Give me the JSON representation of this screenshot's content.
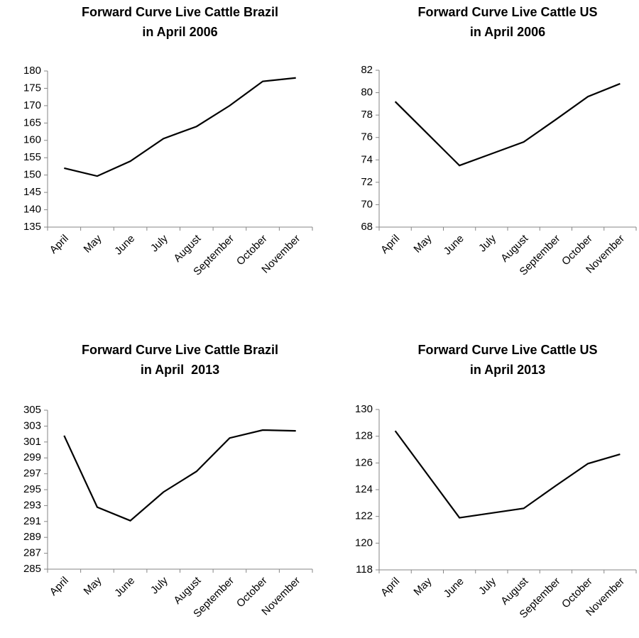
{
  "chart_data": [
    {
      "type": "line",
      "title": [
        "Forward Curve Live Cattle Brazil",
        "in April 2006"
      ],
      "categories": [
        "April",
        "May",
        "June",
        "July",
        "August",
        "September",
        "October",
        "November"
      ],
      "values": [
        152,
        149.7,
        154,
        160.5,
        164,
        170,
        177,
        178
      ],
      "color": "#000000",
      "ylim": [
        135,
        180
      ],
      "yticks": [
        135,
        140,
        145,
        150,
        155,
        160,
        165,
        170,
        175,
        180
      ]
    },
    {
      "type": "line",
      "title": [
        "Forward Curve Live Cattle US",
        "in April 2006"
      ],
      "categories": [
        "April",
        "May",
        "June",
        "July",
        "August",
        "September",
        "October",
        "November"
      ],
      "values": [
        79.2,
        76.35,
        73.5,
        74.55,
        75.6,
        77.6,
        79.65,
        80.8
      ],
      "color": "#000000",
      "ylim": [
        68,
        82
      ],
      "yticks": [
        68,
        70,
        72,
        74,
        76,
        78,
        80,
        82
      ]
    },
    {
      "type": "line",
      "title": [
        "Forward Curve Live Cattle Brazil",
        "in April  2013"
      ],
      "categories": [
        "April",
        "May",
        "June",
        "July",
        "August",
        "September",
        "October",
        "November"
      ],
      "values": [
        301.8,
        292.8,
        291.1,
        294.7,
        297.3,
        301.5,
        302.5,
        302.4
      ],
      "color": "#000000",
      "ylim": [
        285,
        305
      ],
      "yticks": [
        285,
        287,
        289,
        291,
        293,
        295,
        297,
        299,
        301,
        303,
        305
      ]
    },
    {
      "type": "line",
      "title": [
        "Forward Curve Live Cattle US",
        "in April 2013"
      ],
      "categories": [
        "April",
        "May",
        "June",
        "July",
        "August",
        "September",
        "October",
        "November"
      ],
      "values": [
        128.4,
        125.15,
        121.9,
        122.25,
        122.6,
        124.3,
        125.95,
        126.65
      ],
      "color": "#000000",
      "ylim": [
        118,
        130
      ],
      "yticks": [
        118,
        120,
        122,
        124,
        126,
        128,
        130
      ]
    }
  ]
}
